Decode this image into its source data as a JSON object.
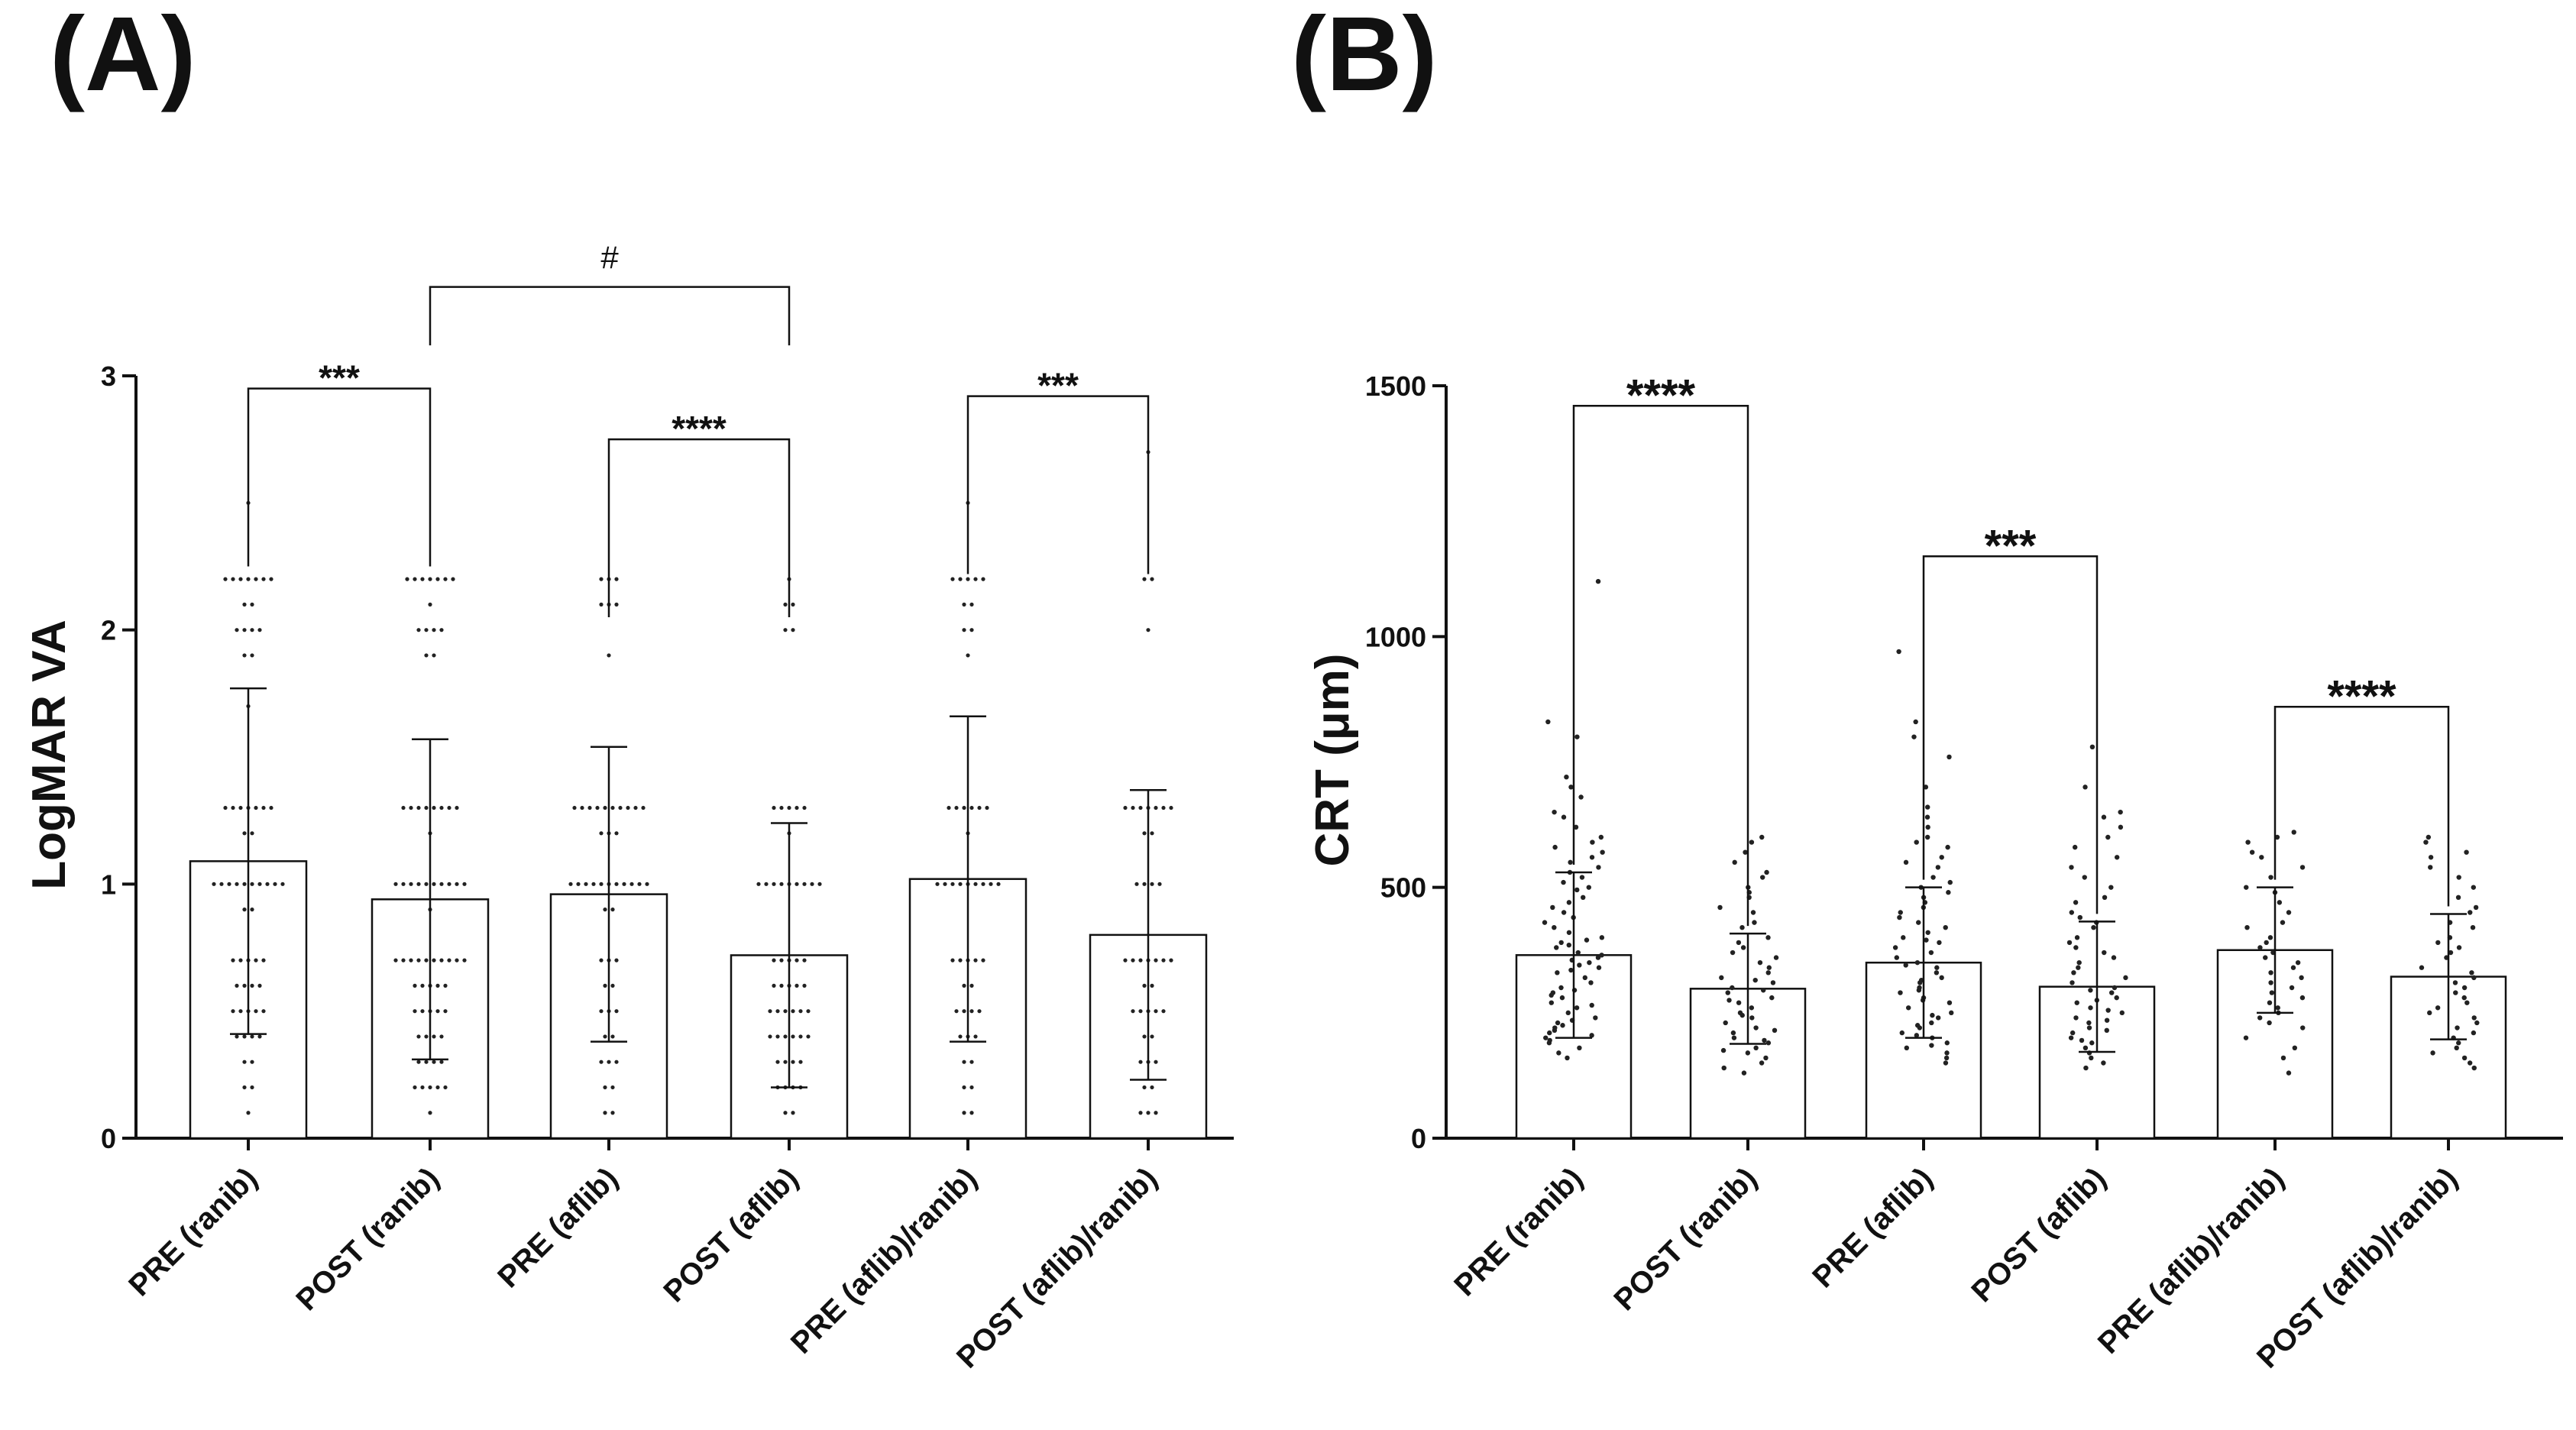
{
  "chart_data": [
    {
      "type": "bar",
      "panel_label": "(A)",
      "ylabel": "LogMAR VA",
      "xlabel": "",
      "ylim": [
        0,
        3
      ],
      "yticks": [
        "0",
        "1",
        "2",
        "3"
      ],
      "categories": [
        "PRE (ranib)",
        "POST (ranib)",
        "PRE (aflib)",
        "POST (aflib)",
        "PRE (aflib)/ranib)",
        "POST (aflib)/ranib)"
      ],
      "values": [
        1.09,
        0.94,
        0.96,
        0.72,
        1.02,
        0.8
      ],
      "error": [
        0.68,
        0.63,
        0.58,
        0.52,
        0.64,
        0.57
      ],
      "points": [
        [
          2.5,
          2.2,
          2.2,
          2.2,
          2.2,
          2.2,
          2.2,
          2.2,
          2.1,
          2.1,
          2.0,
          2.0,
          2.0,
          2.0,
          1.9,
          1.9,
          1.7,
          1.3,
          1.3,
          1.3,
          1.3,
          1.3,
          1.3,
          1.3,
          1.2,
          1.2,
          1.0,
          1.0,
          1.0,
          1.0,
          1.0,
          1.0,
          1.0,
          1.0,
          1.0,
          1.0,
          0.9,
          0.9,
          0.7,
          0.7,
          0.7,
          0.7,
          0.7,
          0.6,
          0.6,
          0.6,
          0.6,
          0.5,
          0.5,
          0.5,
          0.5,
          0.5,
          0.4,
          0.4,
          0.4,
          0.4,
          0.3,
          0.3,
          0.2,
          0.2,
          0.1
        ],
        [
          2.2,
          2.2,
          2.2,
          2.2,
          2.2,
          2.2,
          2.2,
          2.1,
          2.0,
          2.0,
          2.0,
          2.0,
          1.9,
          1.9,
          1.3,
          1.3,
          1.3,
          1.3,
          1.3,
          1.3,
          1.3,
          1.3,
          1.2,
          1.0,
          1.0,
          1.0,
          1.0,
          1.0,
          1.0,
          1.0,
          1.0,
          1.0,
          1.0,
          0.9,
          0.7,
          0.7,
          0.7,
          0.7,
          0.7,
          0.7,
          0.7,
          0.7,
          0.7,
          0.7,
          0.6,
          0.6,
          0.6,
          0.6,
          0.6,
          0.5,
          0.5,
          0.5,
          0.5,
          0.5,
          0.4,
          0.4,
          0.4,
          0.4,
          0.3,
          0.3,
          0.3,
          0.3,
          0.2,
          0.2,
          0.2,
          0.2,
          0.2,
          0.1
        ],
        [
          2.2,
          2.2,
          2.2,
          2.1,
          2.1,
          2.1,
          1.9,
          1.3,
          1.3,
          1.3,
          1.3,
          1.3,
          1.3,
          1.3,
          1.3,
          1.3,
          1.3,
          1.2,
          1.2,
          1.2,
          1.0,
          1.0,
          1.0,
          1.0,
          1.0,
          1.0,
          1.0,
          1.0,
          1.0,
          1.0,
          1.0,
          0.9,
          0.9,
          0.7,
          0.7,
          0.7,
          0.6,
          0.6,
          0.5,
          0.5,
          0.5,
          0.4,
          0.4,
          0.3,
          0.3,
          0.3,
          0.2,
          0.2,
          0.1,
          0.1
        ],
        [
          2.2,
          2.1,
          2.1,
          2.0,
          2.0,
          1.3,
          1.3,
          1.3,
          1.3,
          1.3,
          1.2,
          1.0,
          1.0,
          1.0,
          1.0,
          1.0,
          1.0,
          1.0,
          1.0,
          1.0,
          0.7,
          0.7,
          0.7,
          0.7,
          0.7,
          0.6,
          0.6,
          0.6,
          0.6,
          0.6,
          0.5,
          0.5,
          0.5,
          0.5,
          0.5,
          0.5,
          0.4,
          0.4,
          0.4,
          0.4,
          0.4,
          0.4,
          0.3,
          0.3,
          0.3,
          0.3,
          0.2,
          0.2,
          0.2,
          0.2,
          0.1,
          0.1
        ],
        [
          2.5,
          2.2,
          2.2,
          2.2,
          2.2,
          2.2,
          2.1,
          2.1,
          2.0,
          2.0,
          1.9,
          1.3,
          1.3,
          1.3,
          1.3,
          1.3,
          1.3,
          1.2,
          1.0,
          1.0,
          1.0,
          1.0,
          1.0,
          1.0,
          1.0,
          1.0,
          1.0,
          0.7,
          0.7,
          0.7,
          0.7,
          0.7,
          0.6,
          0.6,
          0.5,
          0.5,
          0.5,
          0.5,
          0.4,
          0.4,
          0.4,
          0.3,
          0.3,
          0.2,
          0.2,
          0.1,
          0.1
        ],
        [
          2.7,
          2.2,
          2.2,
          2.0,
          1.3,
          1.3,
          1.3,
          1.3,
          1.3,
          1.3,
          1.3,
          1.2,
          1.2,
          1.0,
          1.0,
          1.0,
          1.0,
          0.7,
          0.7,
          0.7,
          0.7,
          0.7,
          0.7,
          0.7,
          0.6,
          0.6,
          0.5,
          0.5,
          0.5,
          0.5,
          0.5,
          0.4,
          0.4,
          0.3,
          0.3,
          0.3,
          0.2,
          0.2,
          0.1,
          0.1,
          0.1
        ]
      ],
      "annotations": [
        {
          "from": 0,
          "to": 1,
          "level": 2.95,
          "text": "***",
          "style": "small"
        },
        {
          "from": 2,
          "to": 3,
          "level": 2.75,
          "text": "****",
          "style": "small"
        },
        {
          "from": 4,
          "to": 5,
          "level": 2.92,
          "text": "***",
          "style": "small"
        },
        {
          "from": 1,
          "to": 3,
          "level": 3.35,
          "text": "#",
          "style": "hash",
          "drop_to": 3.12
        }
      ]
    },
    {
      "type": "bar",
      "panel_label": "(B)",
      "ylabel": "CRT (μm)",
      "xlabel": "",
      "ylim": [
        0,
        1500
      ],
      "yticks": [
        "0",
        "500",
        "1000",
        "1500"
      ],
      "categories": [
        "PRE (ranib)",
        "POST (ranib)",
        "PRE (aflib)",
        "POST (aflib)",
        "PRE (aflib)/ranib)",
        "POST (aflib)/ranib)"
      ],
      "values": [
        365,
        298,
        350,
        302,
        375,
        322
      ],
      "error": [
        165,
        110,
        150,
        130,
        125,
        125
      ],
      "points": [
        [
          1110,
          830,
          800,
          720,
          700,
          680,
          650,
          640,
          620,
          600,
          590,
          580,
          570,
          560,
          550,
          540,
          530,
          520,
          510,
          500,
          495,
          480,
          470,
          460,
          450,
          440,
          430,
          420,
          410,
          400,
          395,
          390,
          385,
          380,
          370,
          365,
          360,
          355,
          350,
          345,
          340,
          335,
          330,
          320,
          310,
          300,
          295,
          290,
          285,
          280,
          270,
          265,
          260,
          250,
          240,
          235,
          230,
          225,
          220,
          215,
          210,
          205,
          200,
          195,
          190,
          180,
          170,
          160
        ],
        [
          600,
          590,
          570,
          550,
          530,
          520,
          500,
          490,
          480,
          460,
          450,
          430,
          420,
          400,
          390,
          380,
          370,
          360,
          350,
          340,
          330,
          320,
          315,
          310,
          300,
          295,
          290,
          280,
          275,
          270,
          260,
          250,
          245,
          240,
          230,
          220,
          215,
          210,
          200,
          195,
          190,
          180,
          175,
          170,
          160,
          150,
          140,
          130
        ],
        [
          970,
          830,
          800,
          760,
          700,
          660,
          640,
          620,
          600,
          590,
          580,
          560,
          550,
          540,
          520,
          510,
          500,
          490,
          480,
          470,
          460,
          450,
          440,
          430,
          420,
          410,
          400,
          395,
          390,
          380,
          370,
          360,
          350,
          345,
          340,
          330,
          320,
          315,
          310,
          300,
          295,
          290,
          280,
          275,
          270,
          260,
          250,
          245,
          240,
          230,
          225,
          220,
          210,
          205,
          200,
          190,
          185,
          180,
          170,
          160,
          150
        ],
        [
          780,
          700,
          650,
          640,
          620,
          600,
          580,
          560,
          540,
          520,
          500,
          480,
          470,
          450,
          440,
          430,
          420,
          400,
          390,
          380,
          370,
          360,
          350,
          340,
          330,
          320,
          310,
          300,
          295,
          290,
          280,
          275,
          270,
          260,
          255,
          250,
          240,
          235,
          230,
          220,
          215,
          210,
          200,
          195,
          190,
          180,
          170,
          160,
          150,
          140
        ],
        [
          610,
          600,
          590,
          570,
          560,
          540,
          520,
          500,
          490,
          470,
          450,
          430,
          420,
          400,
          390,
          380,
          370,
          360,
          350,
          340,
          330,
          320,
          310,
          300,
          290,
          280,
          270,
          260,
          250,
          240,
          230,
          220,
          200,
          180,
          160,
          130
        ],
        [
          600,
          590,
          570,
          560,
          540,
          520,
          500,
          480,
          460,
          450,
          430,
          420,
          400,
          390,
          380,
          370,
          360,
          340,
          330,
          320,
          310,
          300,
          290,
          280,
          270,
          260,
          250,
          240,
          230,
          220,
          210,
          200,
          190,
          180,
          170,
          160,
          150,
          140
        ]
      ],
      "annotations": [
        {
          "from": 0,
          "to": 1,
          "level": 1460,
          "text": "****",
          "style": "large"
        },
        {
          "from": 2,
          "to": 3,
          "level": 1160,
          "text": "***",
          "style": "large"
        },
        {
          "from": 4,
          "to": 5,
          "level": 860,
          "text": "****",
          "style": "large"
        }
      ]
    }
  ]
}
